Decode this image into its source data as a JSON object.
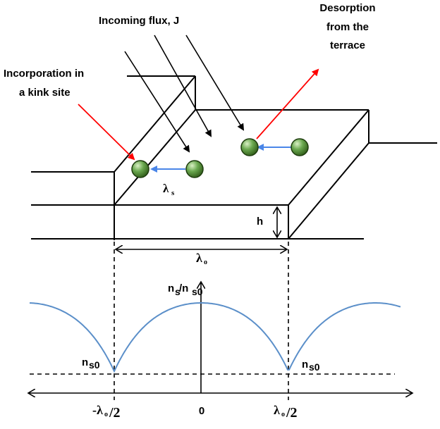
{
  "labels": {
    "incoming_flux": "Incoming flux, J",
    "desorption_line1": "Desorption",
    "desorption_line2": "from the",
    "desorption_line3": "terrace",
    "incorporation_line1": "Incorporation in",
    "incorporation_line2": "a kink site",
    "lambda_s_main": "λ",
    "lambda_s_sub": "s",
    "step_height": "h",
    "lambda_o": "λ",
    "lambda_o_sub": "o",
    "y_axis_label": "n",
    "y_axis_sub1": "s",
    "y_axis_slash": "/n",
    "y_axis_sub2": "s0",
    "ns0_left_main": "n",
    "ns0_left_sub": "s0",
    "ns0_right_main": "n",
    "ns0_right_sub": "s0",
    "x_tick_left_prefix": "-λ",
    "x_tick_left_sub": "o",
    "x_tick_left_suffix": "/2",
    "x_tick_center": "0",
    "x_tick_right_prefix": "λ",
    "x_tick_right_sub": "o",
    "x_tick_right_suffix": "/2"
  },
  "colors": {
    "adatom_fill": "#6aa84f",
    "adatom_stroke": "#1e3d0e",
    "diffusion_arrow": "#4a86e8",
    "red_arrow": "#ff0000",
    "curve": "#5b8fc9"
  }
}
